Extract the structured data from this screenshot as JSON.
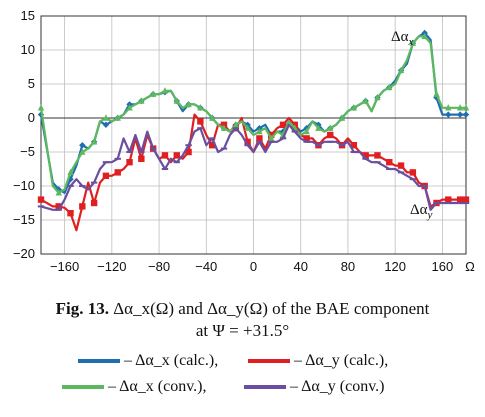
{
  "chart_data": {
    "type": "line",
    "title": "",
    "xlabel": "Ω",
    "ylabel": "",
    "xlim": [
      -180,
      180
    ],
    "ylim": [
      -20,
      15
    ],
    "xticks": [
      -160,
      -120,
      -80,
      -40,
      0,
      40,
      80,
      120,
      160
    ],
    "xtick_labels": [
      "−160",
      "−120",
      "−80",
      "−40",
      "0",
      "40",
      "80",
      "120",
      "160"
    ],
    "yticks": [
      -20,
      -15,
      -10,
      -5,
      0,
      5,
      10,
      15
    ],
    "ytick_labels": [
      "−20",
      "−15",
      "−10",
      "−5",
      "0",
      "5",
      "10",
      "15"
    ],
    "grid": true,
    "x": [
      -180,
      -170,
      -165,
      -160,
      -155,
      -150,
      -145,
      -140,
      -135,
      -130,
      -125,
      -120,
      -115,
      -110,
      -105,
      -100,
      -95,
      -90,
      -85,
      -80,
      -75,
      -70,
      -65,
      -60,
      -55,
      -50,
      -45,
      -40,
      -35,
      -30,
      -25,
      -20,
      -15,
      -10,
      -5,
      0,
      5,
      10,
      15,
      20,
      25,
      30,
      35,
      40,
      45,
      50,
      55,
      60,
      65,
      70,
      75,
      80,
      85,
      90,
      95,
      100,
      105,
      110,
      115,
      120,
      125,
      130,
      135,
      140,
      145,
      150,
      155,
      160,
      165,
      170,
      175,
      180
    ],
    "series": [
      {
        "name": "Δα_x (calc.)",
        "color": "#1f6fb0",
        "marker": "diamond",
        "values": [
          0.5,
          -9.5,
          -10.5,
          -11,
          -9,
          -7,
          -4,
          -4.5,
          -3.5,
          -0.5,
          -1,
          -0.5,
          0,
          0.5,
          2,
          2,
          2.5,
          3,
          3.5,
          3.5,
          3.8,
          4,
          2.5,
          1,
          2,
          2,
          1.5,
          1,
          0,
          -1,
          -1.5,
          -2,
          -1,
          -0.5,
          -1,
          -2,
          -1.5,
          -1,
          -2.5,
          -2,
          -2,
          -0.5,
          -1,
          -2,
          -1.5,
          -0.5,
          -1,
          -2,
          -1.5,
          -1,
          0,
          1,
          1.5,
          2,
          2.5,
          1,
          3,
          4,
          4.5,
          5.5,
          7,
          8,
          11,
          12,
          12.5,
          11.5,
          3,
          0.5,
          0.5,
          0.5,
          0.5,
          0.5
        ]
      },
      {
        "name": "Δα_y (calc.)",
        "color": "#e02020",
        "marker": "square",
        "values": [
          -12,
          -13,
          -13,
          -13.2,
          -14,
          -16.5,
          -13,
          -9.5,
          -12.5,
          -9.5,
          -8.5,
          -8.5,
          -8,
          -7.5,
          -6.5,
          -3,
          -6,
          -2.5,
          -4.5,
          -6,
          -5.5,
          -6.5,
          -5.5,
          -6,
          -5,
          0.5,
          -0.5,
          -2.5,
          -4,
          -1,
          -1,
          -2,
          -1.5,
          0,
          -3.5,
          -5,
          -3,
          -4.5,
          -2.5,
          -1.5,
          -1,
          0,
          -1,
          -2.5,
          -3,
          -3,
          -4,
          -3,
          -2.5,
          -3,
          -4,
          -3,
          -4,
          -5,
          -5.5,
          -5.5,
          -5.5,
          -6,
          -6.5,
          -7,
          -7,
          -8,
          -8,
          -9.5,
          -10,
          -13,
          -12.5,
          -12,
          -12,
          -12,
          -12,
          -12
        ]
      },
      {
        "name": "Δα_x (conv.)",
        "color": "#5cb85c",
        "marker": "triangle",
        "values": [
          1.5,
          -10,
          -11,
          -10.5,
          -8,
          -6.5,
          -5,
          -4.5,
          -3.5,
          -0.5,
          0,
          -0.5,
          0,
          0.5,
          1.5,
          2,
          2.5,
          3,
          3.5,
          3.5,
          4,
          4,
          2.5,
          1.5,
          2,
          2,
          1.5,
          1,
          0,
          -1,
          -1.5,
          -2,
          -1,
          -0.5,
          -1.5,
          -2.5,
          -2,
          -1.5,
          -3,
          -2,
          -2.5,
          -0.5,
          -1.5,
          -2.5,
          -2,
          -0.5,
          -1.5,
          -2,
          -1.5,
          -1,
          0,
          1,
          1.5,
          2,
          2.5,
          1,
          3,
          4,
          4.5,
          5,
          7,
          8.5,
          11,
          12,
          12,
          11,
          3.5,
          1.5,
          1.5,
          1.5,
          1.5,
          1.5
        ]
      },
      {
        "name": "Δα_y (conv.)",
        "color": "#6a4ea0",
        "marker": "line",
        "values": [
          -13,
          -13.5,
          -13.5,
          -12,
          -10,
          -9,
          -10,
          -10.5,
          -9.5,
          -7.5,
          -6.5,
          -6.5,
          -6,
          -3,
          -5,
          -2.5,
          -5,
          -2,
          -4.5,
          -6,
          -7.5,
          -6,
          -6.5,
          -5.5,
          -4,
          -2,
          -1.5,
          -4,
          -3,
          -5,
          -4.5,
          -2.5,
          -1.5,
          -2.5,
          -4,
          -5,
          -3.5,
          -5,
          -3.5,
          -3.5,
          -3,
          -1,
          -2,
          -3,
          -3.5,
          -3.5,
          -4,
          -3.5,
          -3.5,
          -3.5,
          -4,
          -3.5,
          -5,
          -5,
          -6,
          -6.5,
          -6.5,
          -7,
          -7.5,
          -7.5,
          -8,
          -8.5,
          -9,
          -10,
          -10,
          -13.5,
          -12.5,
          -12.5,
          -12.5,
          -12.5,
          -12.5,
          -12.5
        ]
      }
    ],
    "annotations": [
      {
        "text": "Δα",
        "subscript": "x",
        "x": 160,
        "y": 12.5
      },
      {
        "text": "Δα",
        "subscript": "y",
        "x": 160,
        "y": -13.5
      }
    ]
  },
  "caption": {
    "fig_label": "Fig. 13.",
    "line1": " Δα_x(Ω) and Δα_y(Ω) of the BAE component",
    "line2": "at Ψ = +31.5°"
  },
  "legend": [
    {
      "name": "– Δα_x (calc.),",
      "color": "#1f6fb0"
    },
    {
      "name": "– Δα_y (calc.),",
      "color": "#e02020"
    },
    {
      "name": "– Δα_x (conv.),",
      "color": "#5cb85c"
    },
    {
      "name": "– Δα_y (conv.)",
      "color": "#6a4ea0"
    }
  ]
}
